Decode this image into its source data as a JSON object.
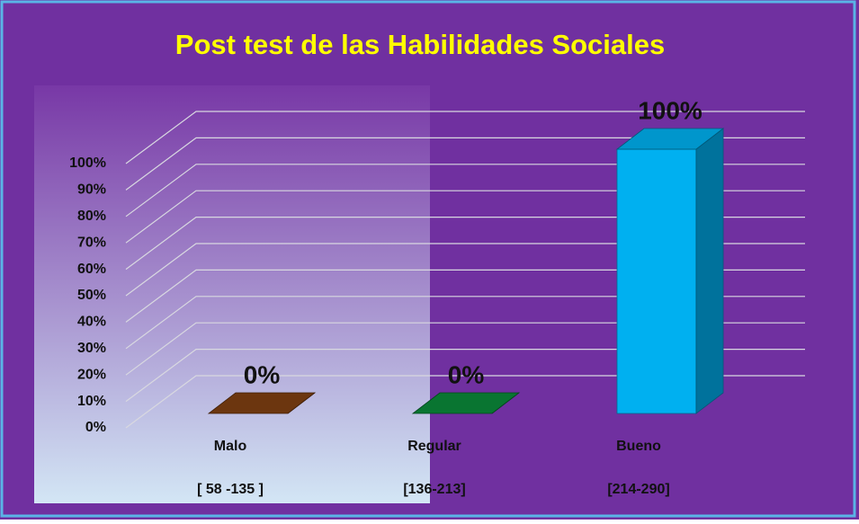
{
  "chart_data": {
    "type": "bar3d",
    "title": "Post test de las Habilidades Sociales",
    "categories": [
      "Malo",
      "Regular",
      "Bueno"
    ],
    "ranges": [
      "[ 58 -135 ]",
      "[136-213]",
      "[214-290]"
    ],
    "values": [
      0,
      0,
      100
    ],
    "value_labels": [
      "0%",
      "0%",
      "100%"
    ],
    "colors": [
      "#7f3f12",
      "#0a8a3a",
      "#00b0f0"
    ],
    "ylim": [
      0,
      100
    ],
    "yticks": [
      {
        "value": 0,
        "label": "0%"
      },
      {
        "value": 10,
        "label": "10%"
      },
      {
        "value": 20,
        "label": "20%"
      },
      {
        "value": 30,
        "label": "30%"
      },
      {
        "value": 40,
        "label": "40%"
      },
      {
        "value": 50,
        "label": "50%"
      },
      {
        "value": 60,
        "label": "60%"
      },
      {
        "value": 70,
        "label": "70%"
      },
      {
        "value": 80,
        "label": "80%"
      },
      {
        "value": 90,
        "label": "90%"
      },
      {
        "value": 100,
        "label": "100%"
      }
    ],
    "grid": true
  }
}
